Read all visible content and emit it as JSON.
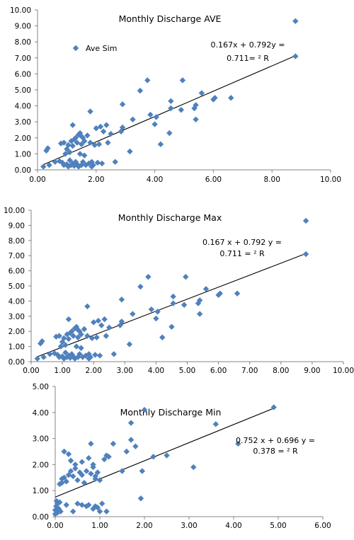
{
  "chart_data": [
    {
      "type": "scatter",
      "title": "Monthly Discharge AVE",
      "legend": {
        "label": "Ave Sim",
        "placement": "top-left"
      },
      "equation": [
        "0.167x + 0.792y =",
        "0.711= ² R"
      ],
      "xlim": [
        0,
        10
      ],
      "ylim": [
        0,
        10
      ],
      "xticks": [
        "0.00",
        "2.00",
        "4.00",
        "6.00",
        "8.00",
        "10.00"
      ],
      "yticks": [
        "0.00",
        "1.00",
        "2.00",
        "3.00",
        "4.00",
        "5.00",
        "6.00",
        "7.00",
        "8.00",
        "9.00",
        "10.00"
      ],
      "trendline": {
        "slope": 0.792,
        "intercept": 0.167
      },
      "colors": {
        "marker": "#4f81bd",
        "line": "#000000"
      },
      "points": [
        [
          0.2,
          0.2
        ],
        [
          0.3,
          1.2
        ],
        [
          0.35,
          1.35
        ],
        [
          0.4,
          0.3
        ],
        [
          0.6,
          0.5
        ],
        [
          0.75,
          0.55
        ],
        [
          0.8,
          1.65
        ],
        [
          0.85,
          0.45
        ],
        [
          0.9,
          0.3
        ],
        [
          0.9,
          1.7
        ],
        [
          0.95,
          1.0
        ],
        [
          1.0,
          0.35
        ],
        [
          1.0,
          1.3
        ],
        [
          1.05,
          0.2
        ],
        [
          1.05,
          1.55
        ],
        [
          1.1,
          0.6
        ],
        [
          1.1,
          1.1
        ],
        [
          1.15,
          0.3
        ],
        [
          1.15,
          1.8
        ],
        [
          1.2,
          0.4
        ],
        [
          1.2,
          1.5
        ],
        [
          1.2,
          2.8
        ],
        [
          1.25,
          0.25
        ],
        [
          1.25,
          1.9
        ],
        [
          1.3,
          0.5
        ],
        [
          1.3,
          2.0
        ],
        [
          1.35,
          0.35
        ],
        [
          1.35,
          1.7
        ],
        [
          1.4,
          0.2
        ],
        [
          1.4,
          2.2
        ],
        [
          1.45,
          1.0
        ],
        [
          1.45,
          2.3
        ],
        [
          1.5,
          0.3
        ],
        [
          1.5,
          1.6
        ],
        [
          1.5,
          2.1
        ],
        [
          1.55,
          0.5
        ],
        [
          1.55,
          2.0
        ],
        [
          1.6,
          0.9
        ],
        [
          1.6,
          1.8
        ],
        [
          1.65,
          0.3
        ],
        [
          1.7,
          2.15
        ],
        [
          1.75,
          0.4
        ],
        [
          1.8,
          1.7
        ],
        [
          1.8,
          3.65
        ],
        [
          1.85,
          0.2
        ],
        [
          1.85,
          0.5
        ],
        [
          1.9,
          0.3
        ],
        [
          1.95,
          1.55
        ],
        [
          2.0,
          2.6
        ],
        [
          2.05,
          0.45
        ],
        [
          2.1,
          1.6
        ],
        [
          2.15,
          2.7
        ],
        [
          2.2,
          0.4
        ],
        [
          2.25,
          2.4
        ],
        [
          2.35,
          2.8
        ],
        [
          2.4,
          1.7
        ],
        [
          2.5,
          2.25
        ],
        [
          2.65,
          0.5
        ],
        [
          2.85,
          2.4
        ],
        [
          2.9,
          2.65
        ],
        [
          2.9,
          4.1
        ],
        [
          3.15,
          1.15
        ],
        [
          3.25,
          3.15
        ],
        [
          3.5,
          4.95
        ],
        [
          3.75,
          5.6
        ],
        [
          3.85,
          3.45
        ],
        [
          4.0,
          2.85
        ],
        [
          4.05,
          3.3
        ],
        [
          4.2,
          1.6
        ],
        [
          4.5,
          2.3
        ],
        [
          4.55,
          3.85
        ],
        [
          4.55,
          4.3
        ],
        [
          4.9,
          3.75
        ],
        [
          4.95,
          5.6
        ],
        [
          5.35,
          3.85
        ],
        [
          5.4,
          4.05
        ],
        [
          5.4,
          3.15
        ],
        [
          5.6,
          4.8
        ],
        [
          6.0,
          4.4
        ],
        [
          6.05,
          4.5
        ],
        [
          6.6,
          4.5
        ],
        [
          8.8,
          7.1
        ],
        [
          8.8,
          9.3
        ]
      ]
    },
    {
      "type": "scatter",
      "title": "Monthly Discharge Max",
      "equation": [
        "0.167 x + 0.792 y =",
        "0.711 = ² R"
      ],
      "xlim": [
        0,
        10
      ],
      "ylim": [
        0,
        10
      ],
      "xticks": [
        "0.00",
        "1.00",
        "2.00",
        "3.00",
        "4.00",
        "5.00",
        "6.00",
        "7.00",
        "8.00",
        "9.00",
        "10.00"
      ],
      "yticks": [
        "0.00",
        "1.00",
        "2.00",
        "3.00",
        "4.00",
        "5.00",
        "6.00",
        "7.00",
        "8.00",
        "9.00",
        "10.00"
      ],
      "trendline": {
        "slope": 0.792,
        "intercept": 0.167
      },
      "colors": {
        "marker": "#4f81bd",
        "line": "#000000"
      },
      "points": [
        [
          0.2,
          0.2
        ],
        [
          0.3,
          1.2
        ],
        [
          0.35,
          1.35
        ],
        [
          0.4,
          0.3
        ],
        [
          0.6,
          0.5
        ],
        [
          0.75,
          0.55
        ],
        [
          0.8,
          1.65
        ],
        [
          0.85,
          0.45
        ],
        [
          0.9,
          0.3
        ],
        [
          0.9,
          1.7
        ],
        [
          0.95,
          1.0
        ],
        [
          1.0,
          0.35
        ],
        [
          1.0,
          1.3
        ],
        [
          1.05,
          0.2
        ],
        [
          1.05,
          1.55
        ],
        [
          1.1,
          0.6
        ],
        [
          1.1,
          1.1
        ],
        [
          1.15,
          0.3
        ],
        [
          1.15,
          1.8
        ],
        [
          1.2,
          0.4
        ],
        [
          1.2,
          1.5
        ],
        [
          1.2,
          2.8
        ],
        [
          1.25,
          0.25
        ],
        [
          1.25,
          1.9
        ],
        [
          1.3,
          0.5
        ],
        [
          1.3,
          2.0
        ],
        [
          1.35,
          0.35
        ],
        [
          1.35,
          1.7
        ],
        [
          1.4,
          0.2
        ],
        [
          1.4,
          2.2
        ],
        [
          1.45,
          1.0
        ],
        [
          1.45,
          2.3
        ],
        [
          1.5,
          0.3
        ],
        [
          1.5,
          1.6
        ],
        [
          1.5,
          2.1
        ],
        [
          1.55,
          0.5
        ],
        [
          1.55,
          2.0
        ],
        [
          1.6,
          0.9
        ],
        [
          1.6,
          1.8
        ],
        [
          1.65,
          0.3
        ],
        [
          1.7,
          2.15
        ],
        [
          1.75,
          0.4
        ],
        [
          1.8,
          1.7
        ],
        [
          1.8,
          3.65
        ],
        [
          1.85,
          0.2
        ],
        [
          1.85,
          0.5
        ],
        [
          1.9,
          0.3
        ],
        [
          1.95,
          1.55
        ],
        [
          2.0,
          2.6
        ],
        [
          2.05,
          0.45
        ],
        [
          2.1,
          1.6
        ],
        [
          2.15,
          2.7
        ],
        [
          2.2,
          0.4
        ],
        [
          2.25,
          2.4
        ],
        [
          2.35,
          2.8
        ],
        [
          2.4,
          1.7
        ],
        [
          2.5,
          2.25
        ],
        [
          2.65,
          0.5
        ],
        [
          2.85,
          2.4
        ],
        [
          2.9,
          2.65
        ],
        [
          2.9,
          4.1
        ],
        [
          3.15,
          1.15
        ],
        [
          3.25,
          3.15
        ],
        [
          3.5,
          4.95
        ],
        [
          3.75,
          5.6
        ],
        [
          3.85,
          3.45
        ],
        [
          4.0,
          2.85
        ],
        [
          4.05,
          3.3
        ],
        [
          4.2,
          1.6
        ],
        [
          4.5,
          2.3
        ],
        [
          4.55,
          3.85
        ],
        [
          4.55,
          4.3
        ],
        [
          4.9,
          3.75
        ],
        [
          4.95,
          5.6
        ],
        [
          5.35,
          3.85
        ],
        [
          5.4,
          4.05
        ],
        [
          5.4,
          3.15
        ],
        [
          5.6,
          4.8
        ],
        [
          6.0,
          4.4
        ],
        [
          6.05,
          4.5
        ],
        [
          6.6,
          4.5
        ],
        [
          8.8,
          7.1
        ],
        [
          8.8,
          9.3
        ]
      ]
    },
    {
      "type": "scatter",
      "title": "Monthly Discharge Min",
      "equation": [
        "0.752 x + 0.696 y =",
        "0.378 = ² R"
      ],
      "xlim": [
        0,
        6
      ],
      "ylim": [
        0,
        5
      ],
      "xticks": [
        "0.00",
        "1.00",
        "2.00",
        "3.00",
        "4.00",
        "5.00",
        "6.00"
      ],
      "yticks": [
        "0.00",
        "1.00",
        "2.00",
        "3.00",
        "4.00",
        "5.00"
      ],
      "trendline": {
        "slope": 0.696,
        "intercept": 0.752
      },
      "colors": {
        "marker": "#4f81bd",
        "line": "#000000"
      },
      "points": [
        [
          0.0,
          0.1
        ],
        [
          0.0,
          0.25
        ],
        [
          0.02,
          0.4
        ],
        [
          0.03,
          0.6
        ],
        [
          0.05,
          0.15
        ],
        [
          0.05,
          0.5
        ],
        [
          0.08,
          0.3
        ],
        [
          0.1,
          0.55
        ],
        [
          0.1,
          1.25
        ],
        [
          0.12,
          0.2
        ],
        [
          0.15,
          1.3
        ],
        [
          0.15,
          1.45
        ],
        [
          0.2,
          1.5
        ],
        [
          0.2,
          2.5
        ],
        [
          0.25,
          0.45
        ],
        [
          0.25,
          1.35
        ],
        [
          0.3,
          1.6
        ],
        [
          0.3,
          2.4
        ],
        [
          0.35,
          1.75
        ],
        [
          0.35,
          2.15
        ],
        [
          0.4,
          0.2
        ],
        [
          0.4,
          1.55
        ],
        [
          0.45,
          1.85
        ],
        [
          0.45,
          2.0
        ],
        [
          0.5,
          0.5
        ],
        [
          0.5,
          1.4
        ],
        [
          0.55,
          1.7
        ],
        [
          0.6,
          0.45
        ],
        [
          0.6,
          1.6
        ],
        [
          0.6,
          2.1
        ],
        [
          0.65,
          1.3
        ],
        [
          0.7,
          0.4
        ],
        [
          0.7,
          1.75
        ],
        [
          0.75,
          2.25
        ],
        [
          0.75,
          0.45
        ],
        [
          0.8,
          1.65
        ],
        [
          0.8,
          2.8
        ],
        [
          0.85,
          0.3
        ],
        [
          0.85,
          1.9
        ],
        [
          0.85,
          2.0
        ],
        [
          0.9,
          0.4
        ],
        [
          0.9,
          1.45
        ],
        [
          0.9,
          1.55
        ],
        [
          0.95,
          1.7
        ],
        [
          0.95,
          0.35
        ],
        [
          1.0,
          0.2
        ],
        [
          1.0,
          1.4
        ],
        [
          1.05,
          0.5
        ],
        [
          1.1,
          2.2
        ],
        [
          1.15,
          0.2
        ],
        [
          1.15,
          2.35
        ],
        [
          1.2,
          2.3
        ],
        [
          1.3,
          2.8
        ],
        [
          1.5,
          1.75
        ],
        [
          1.6,
          2.5
        ],
        [
          1.7,
          2.95
        ],
        [
          1.7,
          3.6
        ],
        [
          1.8,
          2.7
        ],
        [
          1.92,
          0.7
        ],
        [
          1.95,
          1.75
        ],
        [
          2.0,
          4.1
        ],
        [
          2.2,
          2.3
        ],
        [
          2.5,
          2.35
        ],
        [
          3.1,
          1.9
        ],
        [
          3.6,
          3.55
        ],
        [
          4.1,
          2.8
        ],
        [
          4.9,
          4.2
        ]
      ]
    }
  ]
}
